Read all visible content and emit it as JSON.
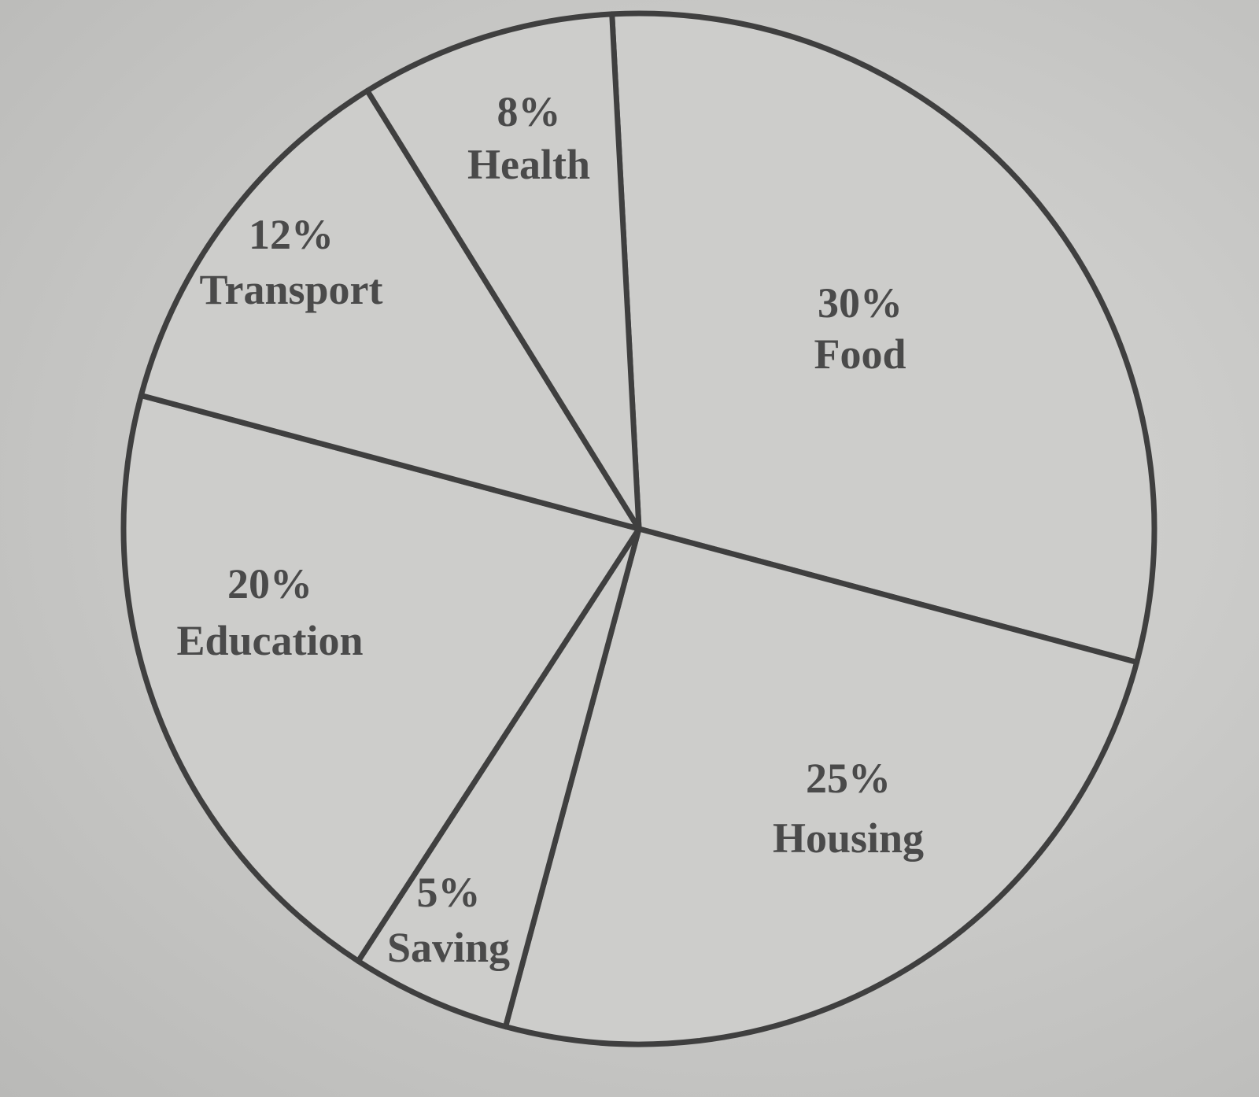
{
  "chart_data": {
    "type": "pie",
    "slices": [
      {
        "label": "Food",
        "percent_label": "30%",
        "value": 30
      },
      {
        "label": "Housing",
        "percent_label": "25%",
        "value": 25
      },
      {
        "label": "Saving",
        "percent_label": "5%",
        "value": 5
      },
      {
        "label": "Education",
        "percent_label": "20%",
        "value": 20
      },
      {
        "label": "Transport",
        "percent_label": "12%",
        "value": 12
      },
      {
        "label": "Health",
        "percent_label": "8%",
        "value": 8
      }
    ],
    "legend": "none",
    "colors": {
      "fill": "#cdcdcb",
      "stroke": "#3f3f3f",
      "text": "#4a4a4a"
    }
  }
}
